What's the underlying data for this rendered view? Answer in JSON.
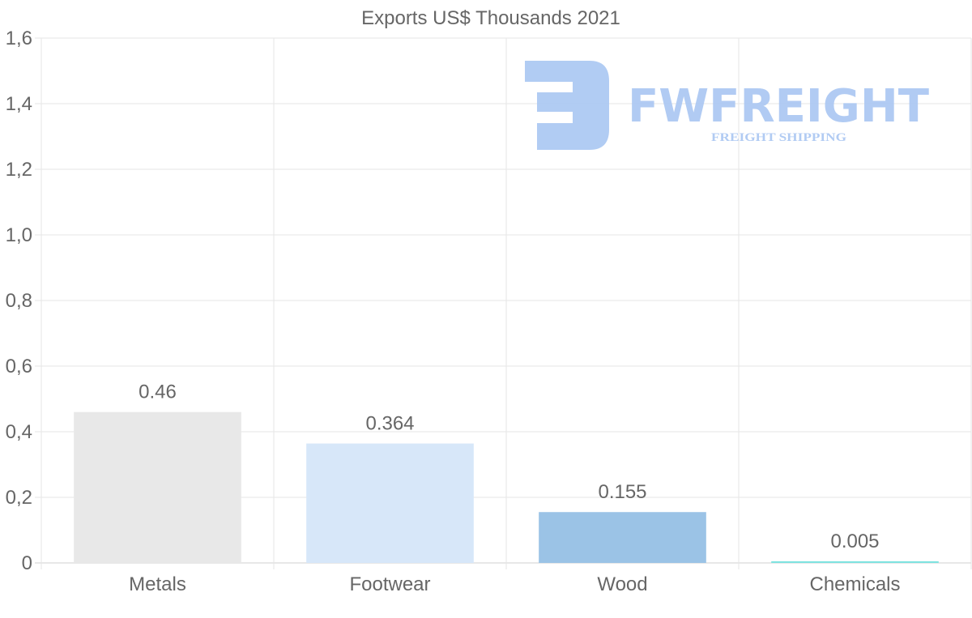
{
  "chart_data": {
    "type": "bar",
    "title": "Exports US$ Thousands 2021",
    "xlabel": "",
    "ylabel": "",
    "categories": [
      "Metals",
      "Footwear",
      "Wood",
      "Chemicals"
    ],
    "values": [
      0.46,
      0.364,
      0.155,
      0.005
    ],
    "value_labels": [
      "0.46",
      "0.364",
      "0.155",
      "0.005"
    ],
    "colors": [
      "#e8e8e8",
      "#d7e7f9",
      "#9bc3e6",
      "#7fe3e0"
    ],
    "ylim": [
      0,
      1.6
    ],
    "yticks": [
      0,
      0.2,
      0.4,
      0.6,
      0.8,
      1.0,
      1.2,
      1.4,
      1.6
    ],
    "ytick_labels": [
      "0",
      "0,2",
      "0,4",
      "0,6",
      "0,8",
      "1,0",
      "1,2",
      "1,4",
      "1,6"
    ],
    "grid": true,
    "legend": "none"
  },
  "watermark": {
    "brand": "FWFREIGHT",
    "tagline": "FREIGHT SHIPPING",
    "color": "#a9c6f2"
  }
}
